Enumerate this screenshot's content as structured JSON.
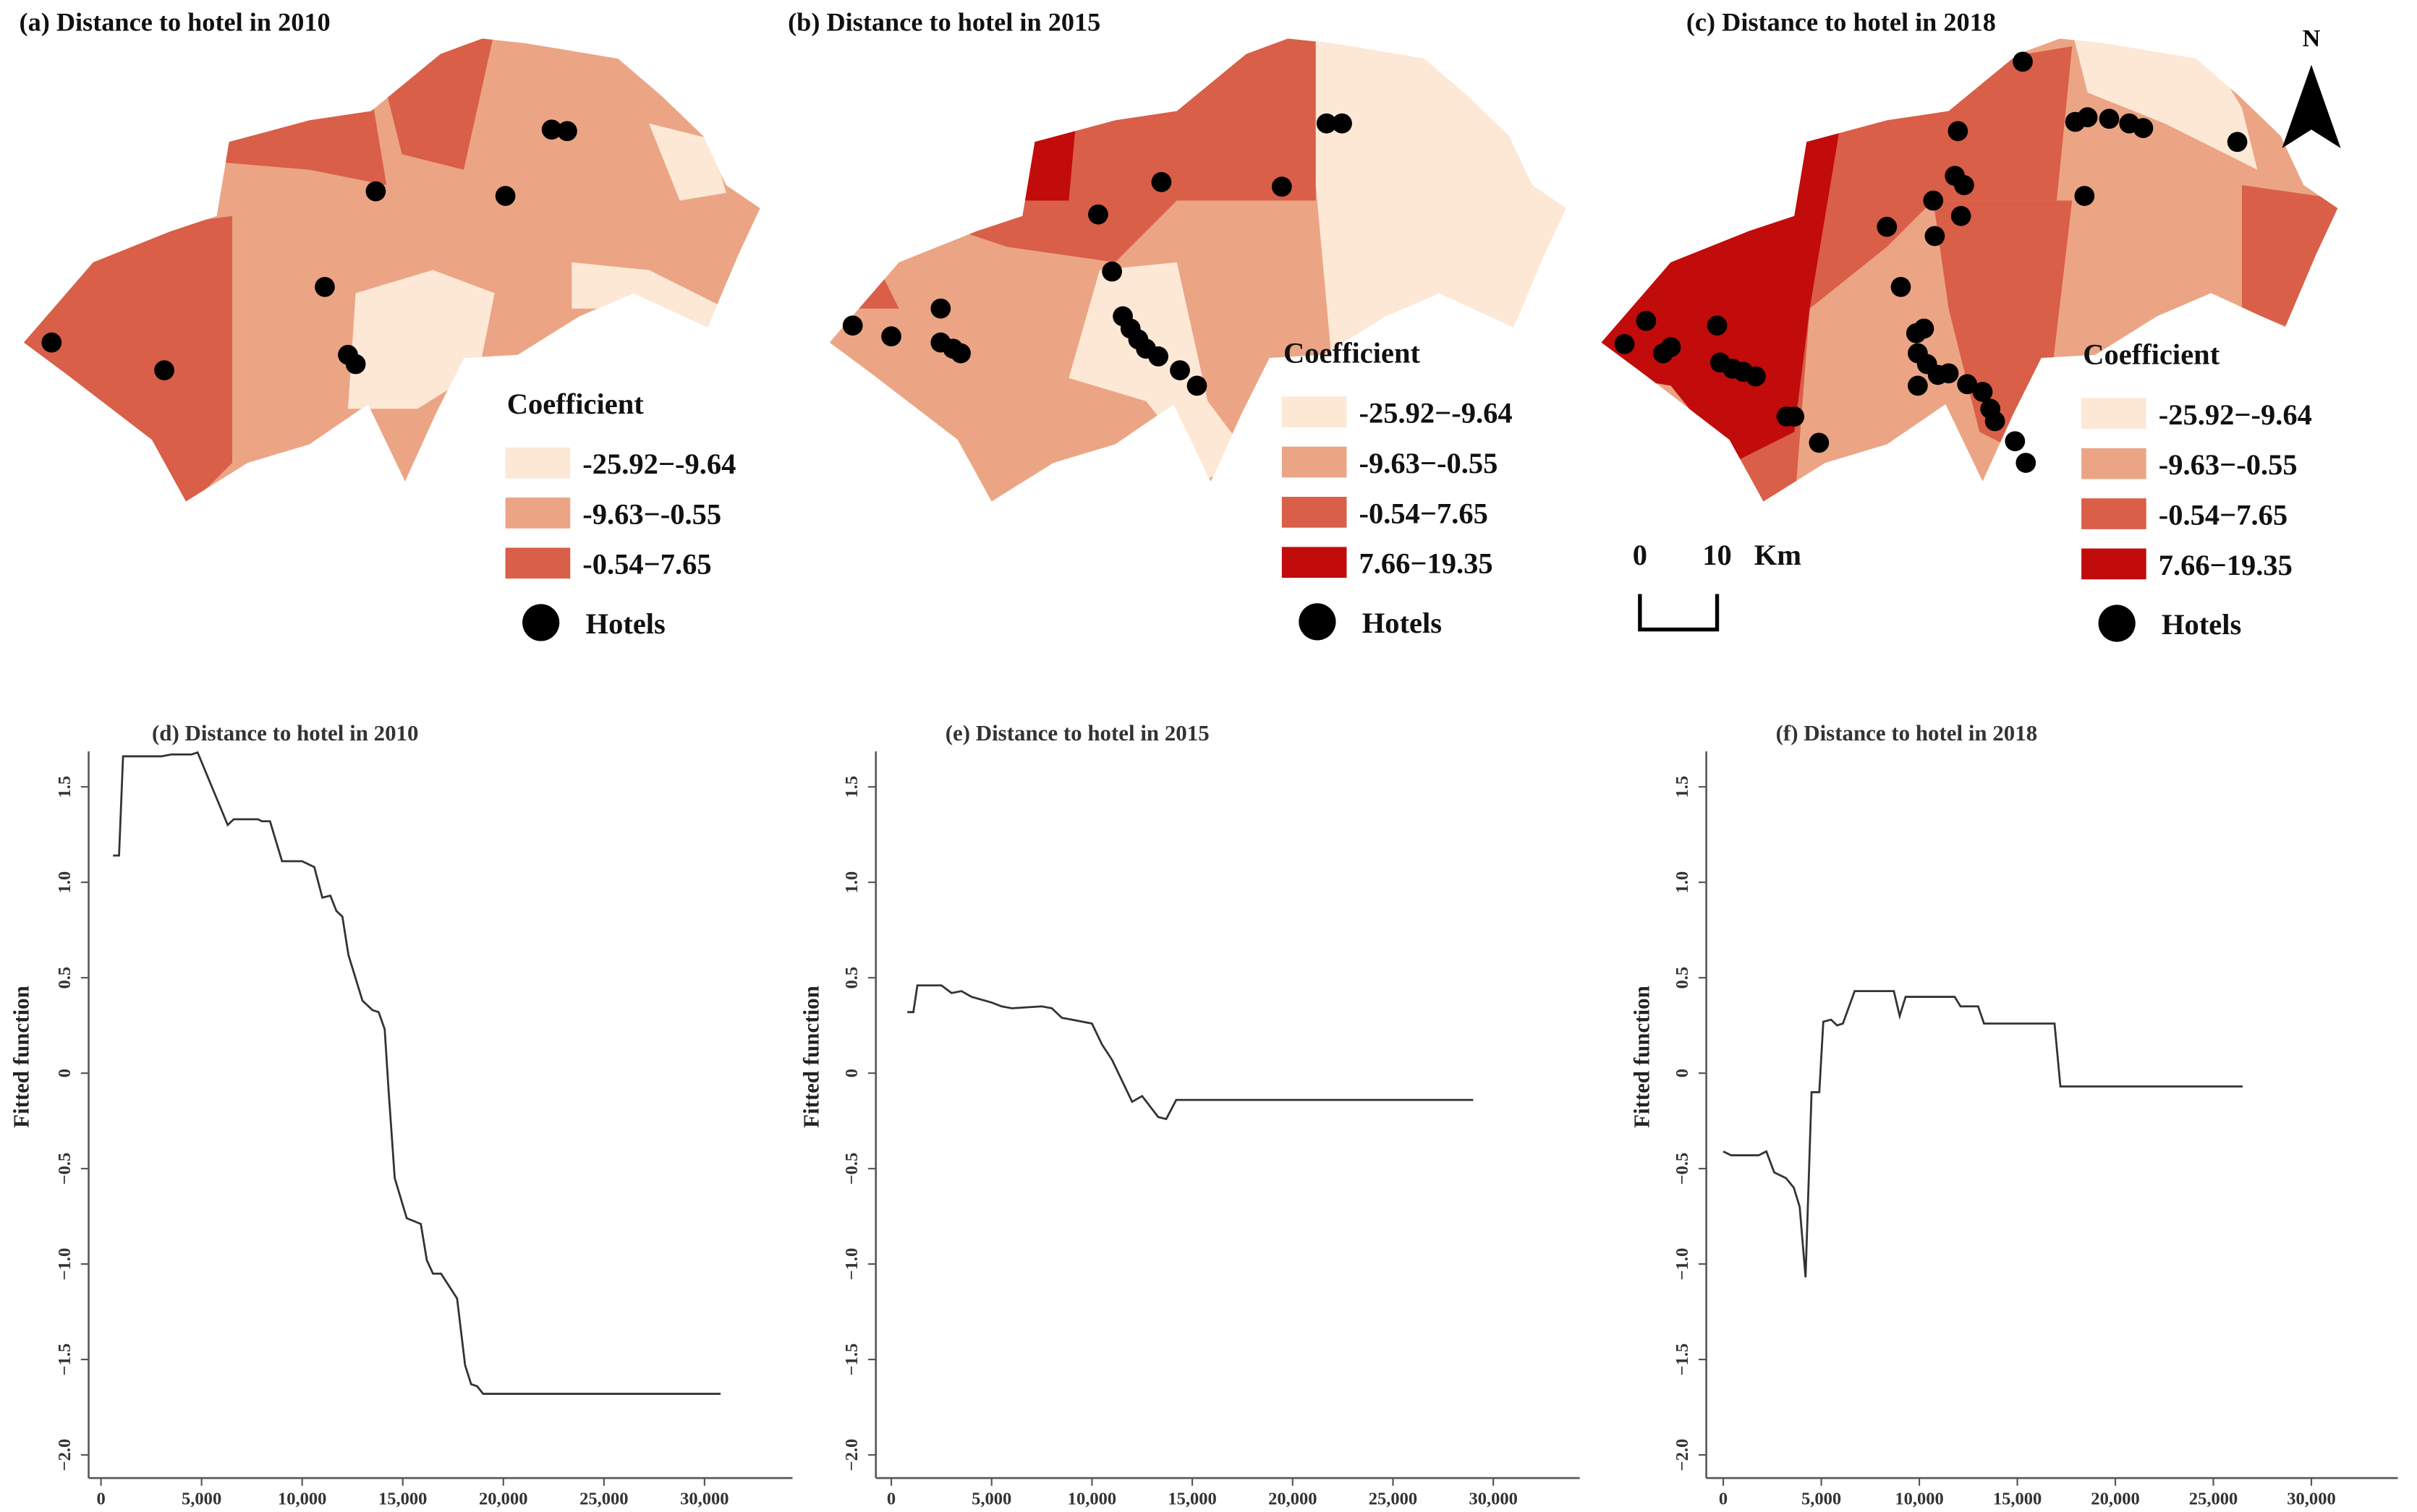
{
  "colors": {
    "c1": "#FDE8D6",
    "c2": "#EBA585",
    "c3": "#D95F48",
    "c4": "#C20B0B",
    "line": "#333333",
    "hotel": "#000000"
  },
  "maps": [
    {
      "title": "(a) Distance to hotel in 2010",
      "legend_title": "Coefficient",
      "classes": [
        "-25.92−-9.64",
        "-9.63−-0.55",
        "-0.54−7.65"
      ],
      "hotel_label": "Hotels"
    },
    {
      "title": "(b) Distance to hotel in 2015",
      "legend_title": "Coefficient",
      "classes": [
        "-25.92−-9.64",
        "-9.63−-0.55",
        "-0.54−7.65",
        "7.66−19.35"
      ],
      "hotel_label": "Hotels"
    },
    {
      "title": "(c) Distance to hotel in 2018",
      "legend_title": "Coefficient",
      "classes": [
        "-25.92−-9.64",
        "-9.63−-0.55",
        "-0.54−7.65",
        "7.66−19.35"
      ],
      "hotel_label": "Hotels"
    }
  ],
  "north_label": "N",
  "scale": {
    "zero": "0",
    "ten": "10",
    "unit": "Km"
  },
  "chart_data": [
    {
      "type": "line",
      "title": "(d) Distance to hotel in 2010",
      "xlabel": "",
      "ylabel": "Fitted function",
      "xlim": [
        0,
        30000
      ],
      "ylim": [
        -2.0,
        1.7
      ],
      "xticks": [
        "0",
        "5,000",
        "10,000",
        "15,000",
        "20,000",
        "25,000",
        "30,000"
      ],
      "yticks": [
        "−2.0",
        "−1.5",
        "−1.0",
        "−0.5",
        "0",
        "0.5",
        "1.0",
        "1.5"
      ],
      "x": [
        600,
        900,
        1100,
        3000,
        3500,
        4500,
        4800,
        6300,
        6600,
        7800,
        8000,
        8400,
        9000,
        10000,
        10600,
        11000,
        11400,
        11700,
        12000,
        12300,
        13000,
        13500,
        13800,
        14100,
        14300,
        14600,
        15200,
        15900,
        16200,
        16500,
        16900,
        17700,
        18100,
        18400,
        18700,
        19000,
        30800
      ],
      "y": [
        1.14,
        1.14,
        1.66,
        1.66,
        1.67,
        1.67,
        1.68,
        1.3,
        1.33,
        1.33,
        1.32,
        1.32,
        1.11,
        1.11,
        1.08,
        0.92,
        0.93,
        0.85,
        0.82,
        0.62,
        0.38,
        0.33,
        0.32,
        0.23,
        -0.1,
        -0.55,
        -0.76,
        -0.79,
        -0.98,
        -1.05,
        -1.05,
        -1.18,
        -1.53,
        -1.63,
        -1.64,
        -1.68,
        -1.68
      ]
    },
    {
      "type": "line",
      "title": "(e) Distance to hotel in 2015",
      "xlabel": "",
      "ylabel": "Fitted function",
      "xlim": [
        0,
        30000
      ],
      "ylim": [
        -2.0,
        1.7
      ],
      "xticks": [
        "0",
        "5,000",
        "10,000",
        "15,000",
        "20,000",
        "25,000",
        "30,000"
      ],
      "yticks": [
        "−2.0",
        "−1.5",
        "−1.0",
        "−0.5",
        "0",
        "0.5",
        "1.0",
        "1.5"
      ],
      "x": [
        800,
        1100,
        1300,
        2500,
        3000,
        3500,
        4000,
        5000,
        5500,
        6000,
        7500,
        8000,
        8500,
        9000,
        10000,
        10500,
        11000,
        12000,
        12500,
        13300,
        13700,
        14200,
        29000
      ],
      "y": [
        0.32,
        0.32,
        0.46,
        0.46,
        0.42,
        0.43,
        0.4,
        0.37,
        0.35,
        0.34,
        0.35,
        0.34,
        0.29,
        0.28,
        0.26,
        0.15,
        0.07,
        -0.15,
        -0.12,
        -0.23,
        -0.24,
        -0.14,
        -0.14
      ]
    },
    {
      "type": "line",
      "title": "(f) Distance to hotel in 2018",
      "xlabel": "",
      "ylabel": "Fitted function",
      "xlim": [
        0,
        30000
      ],
      "ylim": [
        -2.0,
        1.7
      ],
      "xticks": [
        "0",
        "5,000",
        "10,000",
        "15,000",
        "20,000",
        "25,000",
        "30,000"
      ],
      "yticks": [
        "−2.0",
        "−1.5",
        "−1.0",
        "−0.5",
        "0",
        "0.5",
        "1.0",
        "1.5"
      ],
      "x": [
        0,
        400,
        1800,
        2200,
        2600,
        3200,
        3600,
        3900,
        4200,
        4500,
        4900,
        5100,
        5500,
        5800,
        6100,
        6700,
        8700,
        9000,
        9300,
        11800,
        12100,
        13000,
        13300,
        16900,
        17200,
        26500
      ],
      "y": [
        -0.41,
        -0.43,
        -0.43,
        -0.41,
        -0.52,
        -0.55,
        -0.6,
        -0.7,
        -1.07,
        -0.1,
        -0.1,
        0.27,
        0.28,
        0.25,
        0.26,
        0.43,
        0.43,
        0.3,
        0.4,
        0.4,
        0.35,
        0.35,
        0.26,
        0.26,
        -0.07,
        -0.07
      ]
    }
  ]
}
